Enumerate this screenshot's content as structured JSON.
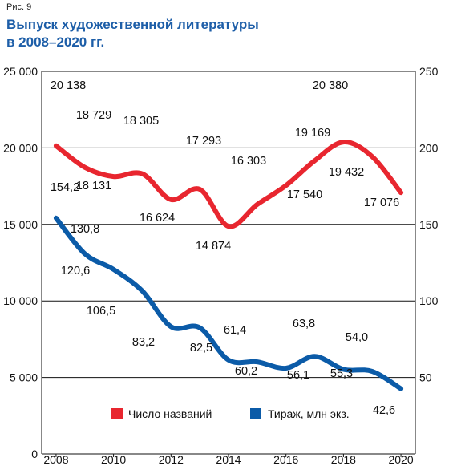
{
  "figure_label": "Рис. 9",
  "title_lines": [
    "Выпуск художественной литературы",
    "в 2008–2020 гг."
  ],
  "colors": {
    "titles_series": "#e8262f",
    "circulation_series": "#0b5ba8",
    "title_text": "#1d5ea8",
    "grid": "#111111"
  },
  "chart_data": {
    "type": "line",
    "title": "Выпуск художественной литературы в 2008–2020 гг.",
    "x": [
      2008,
      2009,
      2010,
      2011,
      2012,
      2013,
      2014,
      2015,
      2016,
      2017,
      2018,
      2019,
      2020
    ],
    "x_ticks": [
      "2008",
      "2010",
      "2012",
      "2014",
      "2016",
      "2018",
      "2020"
    ],
    "left_axis": {
      "ylim": [
        0,
        25000
      ],
      "ticks": [
        "0",
        "5 000",
        "10 000",
        "15 000",
        "20 000",
        "25 000"
      ]
    },
    "right_axis": {
      "ylim": [
        0,
        250
      ],
      "ticks": [
        "50",
        "100",
        "150",
        "200",
        "250"
      ]
    },
    "grid": "horizontal",
    "legend_position": "bottom",
    "series": [
      {
        "name": "Число названий",
        "axis": "left",
        "color": "#e8262f",
        "values": [
          20138,
          18729,
          18131,
          18305,
          16624,
          17293,
          14874,
          16303,
          17540,
          19169,
          20380,
          19432,
          17076
        ],
        "labels": [
          "20 138",
          "18 729",
          "18 131",
          "18 305",
          "16 624",
          "17 293",
          "14 874",
          "16 303",
          "17 540",
          "19 169",
          "20 380",
          "19 432",
          "17 076"
        ]
      },
      {
        "name": "Тираж, млн экз.",
        "axis": "right",
        "color": "#0b5ba8",
        "values": [
          154.2,
          130.8,
          120.6,
          106.5,
          83.2,
          82.5,
          61.4,
          60.2,
          56.1,
          63.8,
          55.3,
          54.0,
          42.6
        ],
        "labels": [
          "154,2",
          "130,8",
          "120,6",
          "106,5",
          "83,2",
          "82,5",
          "61,4",
          "60,2",
          "56,1",
          "63,8",
          "55,3",
          "54,0",
          "42,6"
        ]
      }
    ]
  }
}
